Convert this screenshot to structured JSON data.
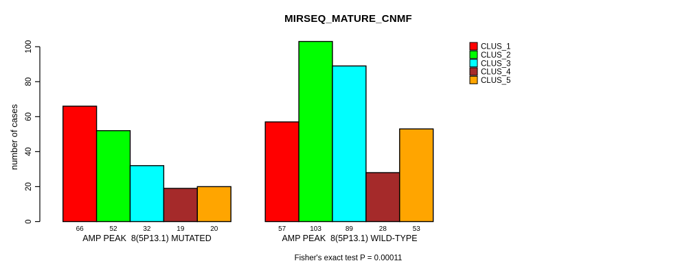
{
  "chart_data": {
    "type": "bar",
    "title": "MIRSEQ_MATURE_CNMF",
    "ylabel": "number of cases",
    "xlabel": "",
    "ylim": [
      0,
      103
    ],
    "yticks": [
      0,
      20,
      40,
      60,
      80,
      100
    ],
    "grid": false,
    "legend_position": "top-right",
    "clusters": [
      {
        "name": "CLUS_1",
        "color": "#FF0000"
      },
      {
        "name": "CLUS_2",
        "color": "#00FF00"
      },
      {
        "name": "CLUS_3",
        "color": "#00FFFF"
      },
      {
        "name": "CLUS_4",
        "color": "#A52A2A"
      },
      {
        "name": "CLUS_5",
        "color": "#FFA500"
      }
    ],
    "groups": [
      {
        "label": "AMP PEAK  8(5P13.1) MUTATED",
        "values": [
          66,
          52,
          32,
          19,
          20
        ]
      },
      {
        "label": "AMP PEAK  8(5P13.1) WILD-TYPE",
        "values": [
          57,
          103,
          89,
          28,
          53
        ]
      }
    ],
    "bar_value_labels_shown": true,
    "annotation": "Fisher's exact test P = 0.00011",
    "axis_color": "#000000",
    "bar_border_color": "#000000"
  }
}
